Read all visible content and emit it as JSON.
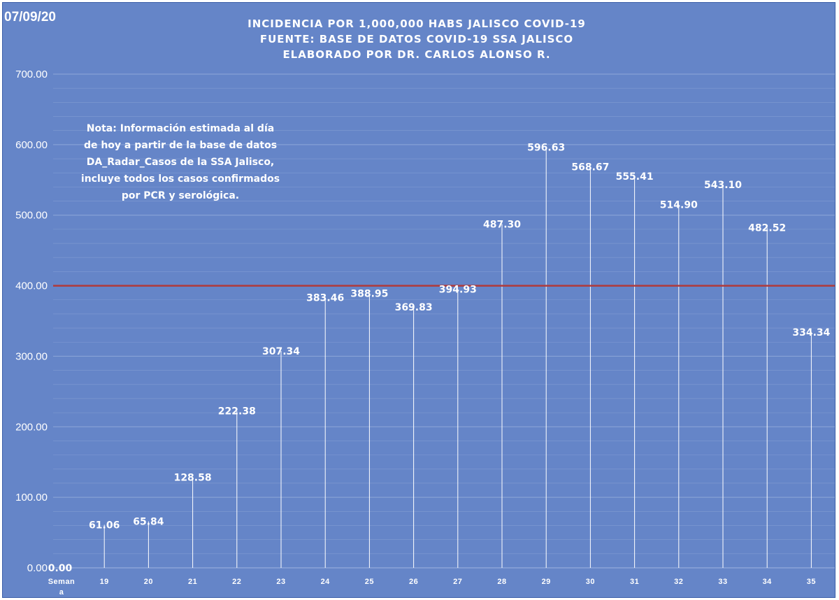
{
  "header": {
    "date": "07/09/20",
    "title_lines": [
      "INCIDENCIA POR 1,000,000 HABS JALISCO COVID-19",
      "FUENTE: BASE DE DATOS COVID-19 SSA JALISCO",
      "ELABORADO POR DR. CARLOS ALONSO R."
    ]
  },
  "note": {
    "lines": [
      "Nota: Información estimada al día",
      "de hoy a partir de la base de datos",
      "DA_Radar_Casos de la SSA Jalisco,",
      "incluye todos los casos confirmados",
      "por PCR y serológica."
    ]
  },
  "colors": {
    "background": "#6585c8",
    "stem": "#ffffff",
    "gridline": "#8ea6d8",
    "reference_line": "#b03a3a",
    "text": "#ffffff"
  },
  "chart_data": {
    "type": "bar",
    "style": "thin vertical stems with value labels",
    "categories": [
      "Semana",
      "19",
      "20",
      "21",
      "22",
      "23",
      "24",
      "25",
      "26",
      "27",
      "28",
      "29",
      "30",
      "31",
      "32",
      "33",
      "34",
      "35"
    ],
    "values": [
      0.0,
      61.06,
      65.84,
      128.58,
      222.38,
      307.34,
      383.46,
      388.95,
      369.83,
      394.93,
      487.3,
      596.63,
      568.67,
      555.41,
      514.9,
      543.1,
      482.52,
      334.34
    ],
    "value_labels": [
      "0.00",
      "61.06",
      "65.84",
      "128.58",
      "222.38",
      "307.34",
      "383.46",
      "388.95",
      "369.83",
      "394.93",
      "487.30",
      "596.63",
      "568.67",
      "555.41",
      "514.90",
      "543.10",
      "482.52",
      "334.34"
    ],
    "ylim": [
      0,
      700
    ],
    "yticks": [
      "0.00",
      "100.00",
      "200.00",
      "300.00",
      "400.00",
      "500.00",
      "600.00",
      "700.00"
    ],
    "reference_line": 400,
    "grid": true,
    "legend": "none"
  }
}
